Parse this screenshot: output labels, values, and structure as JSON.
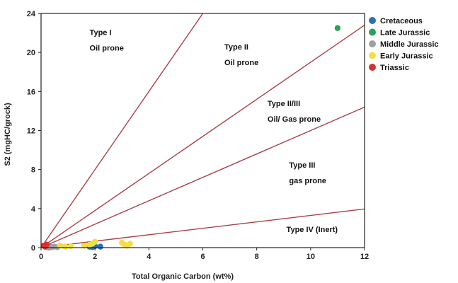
{
  "chart_data": {
    "type": "scatter",
    "xlabel": "Total Organic Carbon (wt%)",
    "ylabel": "S2 (mgHC/grock)",
    "xlim": [
      0,
      12
    ],
    "ylim": [
      0,
      24
    ],
    "x_ticks": [
      "0",
      "2",
      "4",
      "6",
      "8",
      "10",
      "12"
    ],
    "y_ticks": [
      "0",
      "4",
      "8",
      "12",
      "16",
      "20",
      "24"
    ],
    "grid": false,
    "legend_position": "right",
    "boundary_lines": [
      {
        "slope": 4.0
      },
      {
        "slope": 1.9
      },
      {
        "slope": 1.2
      },
      {
        "slope": 0.33
      }
    ],
    "line_color": "#a8404a",
    "regions": [
      {
        "lines": [
          "Type I",
          "Oil prone"
        ],
        "x": 1.8,
        "y": 21.8
      },
      {
        "lines": [
          "Type II",
          "Oil prone"
        ],
        "x": 6.8,
        "y": 20.3
      },
      {
        "lines": [
          "Type II/III",
          "Oil/ Gas prone"
        ],
        "x": 8.4,
        "y": 14.5
      },
      {
        "lines": [
          "Type III",
          "gas prone"
        ],
        "x": 9.2,
        "y": 8.2
      },
      {
        "lines": [
          "Type IV (Inert)"
        ],
        "x": 9.1,
        "y": 1.6
      }
    ],
    "series": [
      {
        "name": "Cretaceous",
        "color": "#2e6fb5",
        "points": [
          [
            0.2,
            0.1
          ],
          [
            0.3,
            0.15
          ],
          [
            1.8,
            0.1
          ],
          [
            1.9,
            0.05
          ],
          [
            2.0,
            0.15
          ],
          [
            2.2,
            0.1
          ]
        ]
      },
      {
        "name": "Late Jurassic",
        "color": "#2aa05a",
        "points": [
          [
            11.0,
            22.5
          ]
        ]
      },
      {
        "name": "Middle Jurassic",
        "color": "#a0a0a0",
        "points": [
          [
            0.4,
            0.05
          ],
          [
            0.5,
            0.1
          ],
          [
            0.6,
            0.05
          ],
          [
            0.3,
            0.0
          ]
        ]
      },
      {
        "name": "Early Jurassic",
        "color": "#f0e040",
        "points": [
          [
            0.7,
            0.2
          ],
          [
            0.9,
            0.1
          ],
          [
            1.1,
            0.15
          ],
          [
            1.6,
            0.2
          ],
          [
            1.8,
            0.3
          ],
          [
            1.9,
            0.4
          ],
          [
            2.0,
            0.6
          ],
          [
            3.0,
            0.5
          ],
          [
            3.1,
            0.3
          ],
          [
            3.2,
            0.2
          ],
          [
            3.3,
            0.4
          ]
        ]
      },
      {
        "name": "Triassic",
        "color": "#d93030",
        "points": [
          [
            0.1,
            0.2
          ],
          [
            0.2,
            0.3
          ],
          [
            0.15,
            0.1
          ]
        ]
      }
    ]
  }
}
